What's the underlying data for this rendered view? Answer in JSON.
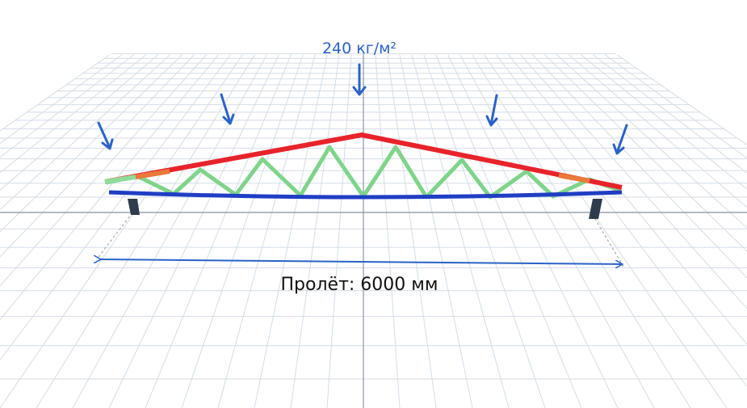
{
  "load_label": "240 кг/м²",
  "span_label": "Пролёт: 6000 мм"
}
